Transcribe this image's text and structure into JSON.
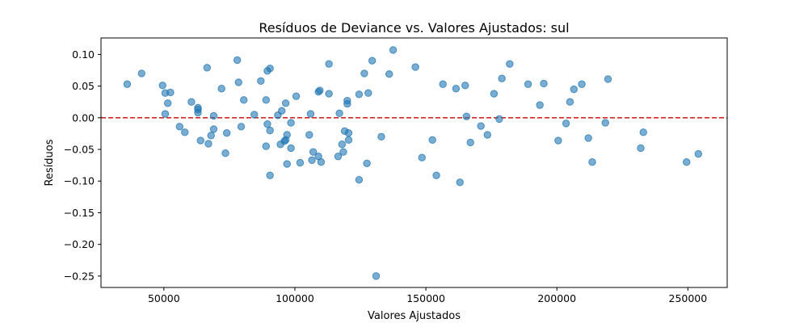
{
  "chart_data": {
    "type": "scatter",
    "title": "Resíduos de Deviance vs. Valores Ajustados: sul",
    "xlabel": "Valores Ajustados",
    "ylabel": "Resíduos",
    "xlim": [
      26000,
      265000
    ],
    "ylim": [
      -0.268,
      0.126
    ],
    "xticks": [
      50000,
      100000,
      150000,
      200000,
      250000
    ],
    "xtick_labels": [
      "50000",
      "100000",
      "150000",
      "200000",
      "250000"
    ],
    "yticks": [
      0.1,
      0.05,
      0.0,
      -0.05,
      -0.1,
      -0.15,
      -0.2,
      -0.25
    ],
    "ytick_labels": [
      "0.10",
      "0.05",
      "0.00",
      "−0.05",
      "−0.10",
      "−0.15",
      "−0.20",
      "−0.25"
    ],
    "reference_line": {
      "y": 0.0,
      "style": "dashed",
      "color": "#d62728"
    },
    "point_color": "#1f77b4",
    "grid": false,
    "points": [
      [
        36000,
        0.053
      ],
      [
        41500,
        0.07
      ],
      [
        49500,
        0.051
      ],
      [
        50500,
        0.039
      ],
      [
        50500,
        0.006
      ],
      [
        51500,
        0.023
      ],
      [
        52500,
        0.04
      ],
      [
        56000,
        -0.014
      ],
      [
        58000,
        -0.023
      ],
      [
        60500,
        0.025
      ],
      [
        63000,
        0.016
      ],
      [
        63000,
        0.013
      ],
      [
        63000,
        0.008
      ],
      [
        64000,
        -0.036
      ],
      [
        66500,
        0.079
      ],
      [
        67000,
        -0.041
      ],
      [
        68000,
        -0.028
      ],
      [
        69000,
        0.003
      ],
      [
        69000,
        -0.018
      ],
      [
        72000,
        0.046
      ],
      [
        73500,
        -0.056
      ],
      [
        74000,
        -0.024
      ],
      [
        78000,
        0.091
      ],
      [
        78500,
        0.056
      ],
      [
        79500,
        -0.014
      ],
      [
        80500,
        0.028
      ],
      [
        84500,
        0.005
      ],
      [
        87000,
        0.058
      ],
      [
        89000,
        -0.045
      ],
      [
        89000,
        0.028
      ],
      [
        89500,
        -0.01
      ],
      [
        89500,
        0.074
      ],
      [
        90500,
        0.078
      ],
      [
        90500,
        -0.02
      ],
      [
        90500,
        -0.091
      ],
      [
        93500,
        0.004
      ],
      [
        94500,
        -0.042
      ],
      [
        95000,
        0.011
      ],
      [
        96000,
        -0.037
      ],
      [
        96500,
        -0.035
      ],
      [
        96500,
        0.023
      ],
      [
        97000,
        -0.073
      ],
      [
        97000,
        -0.027
      ],
      [
        98500,
        -0.008
      ],
      [
        98500,
        -0.048
      ],
      [
        100500,
        0.034
      ],
      [
        102000,
        -0.071
      ],
      [
        105500,
        -0.027
      ],
      [
        106000,
        0.006
      ],
      [
        106500,
        -0.067
      ],
      [
        107000,
        -0.054
      ],
      [
        109000,
        -0.061
      ],
      [
        109000,
        0.041
      ],
      [
        109500,
        0.043
      ],
      [
        110000,
        -0.07
      ],
      [
        113000,
        0.085
      ],
      [
        113000,
        0.038
      ],
      [
        116500,
        -0.061
      ],
      [
        117000,
        0.007
      ],
      [
        118000,
        -0.042
      ],
      [
        118500,
        -0.054
      ],
      [
        119000,
        -0.021
      ],
      [
        120000,
        0.027
      ],
      [
        120000,
        0.022
      ],
      [
        120500,
        -0.024
      ],
      [
        120500,
        -0.035
      ],
      [
        124500,
        0.037
      ],
      [
        124500,
        -0.098
      ],
      [
        126500,
        0.07
      ],
      [
        127500,
        -0.072
      ],
      [
        128000,
        0.039
      ],
      [
        129500,
        0.09
      ],
      [
        131000,
        -0.25
      ],
      [
        133000,
        -0.03
      ],
      [
        136000,
        0.069
      ],
      [
        137500,
        0.107
      ],
      [
        146000,
        0.08
      ],
      [
        148500,
        -0.063
      ],
      [
        152500,
        -0.035
      ],
      [
        154000,
        -0.091
      ],
      [
        156500,
        0.053
      ],
      [
        161500,
        0.046
      ],
      [
        163000,
        -0.102
      ],
      [
        165000,
        0.051
      ],
      [
        165500,
        0.002
      ],
      [
        167000,
        -0.039
      ],
      [
        171000,
        -0.013
      ],
      [
        173500,
        -0.027
      ],
      [
        176000,
        0.038
      ],
      [
        178000,
        -0.002
      ],
      [
        179000,
        0.062
      ],
      [
        182000,
        0.085
      ],
      [
        189000,
        0.053
      ],
      [
        193500,
        0.02
      ],
      [
        195000,
        0.054
      ],
      [
        200500,
        -0.036
      ],
      [
        203500,
        -0.009
      ],
      [
        205000,
        0.025
      ],
      [
        206500,
        0.045
      ],
      [
        209500,
        0.053
      ],
      [
        212000,
        -0.032
      ],
      [
        213500,
        -0.07
      ],
      [
        218500,
        -0.008
      ],
      [
        219500,
        0.061
      ],
      [
        232000,
        -0.048
      ],
      [
        233000,
        -0.023
      ],
      [
        249500,
        -0.07
      ],
      [
        254000,
        -0.057
      ]
    ]
  }
}
